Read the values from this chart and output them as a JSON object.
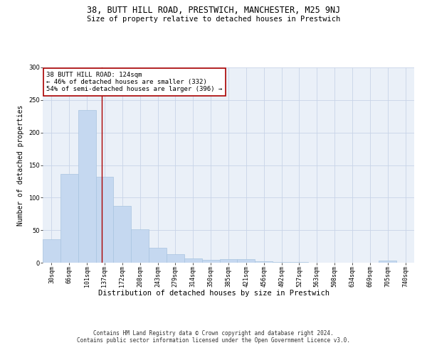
{
  "title1": "38, BUTT HILL ROAD, PRESTWICH, MANCHESTER, M25 9NJ",
  "title2": "Size of property relative to detached houses in Prestwich",
  "xlabel": "Distribution of detached houses by size in Prestwich",
  "ylabel": "Number of detached properties",
  "bar_color": "#c5d8f0",
  "bar_edge_color": "#a8c4e0",
  "grid_color": "#c8d4e8",
  "background_color": "#eaf0f8",
  "categories": [
    "30sqm",
    "66sqm",
    "101sqm",
    "137sqm",
    "172sqm",
    "208sqm",
    "243sqm",
    "279sqm",
    "314sqm",
    "350sqm",
    "385sqm",
    "421sqm",
    "456sqm",
    "492sqm",
    "527sqm",
    "563sqm",
    "598sqm",
    "634sqm",
    "669sqm",
    "705sqm",
    "740sqm"
  ],
  "values": [
    36,
    136,
    234,
    132,
    87,
    51,
    23,
    13,
    7,
    4,
    6,
    6,
    2,
    1,
    1,
    0,
    0,
    0,
    0,
    3,
    0
  ],
  "vline_x": 2.85,
  "vline_color": "#aa0000",
  "annotation_line1": "38 BUTT HILL ROAD: 124sqm",
  "annotation_line2": "← 46% of detached houses are smaller (332)",
  "annotation_line3": "54% of semi-detached houses are larger (396) →",
  "annotation_box_color": "white",
  "annotation_box_edge": "#aa0000",
  "ylim": [
    0,
    300
  ],
  "yticks": [
    0,
    50,
    100,
    150,
    200,
    250,
    300
  ],
  "footer_text": "Contains HM Land Registry data © Crown copyright and database right 2024.\nContains public sector information licensed under the Open Government Licence v3.0.",
  "title1_fontsize": 8.5,
  "title2_fontsize": 7.5,
  "xlabel_fontsize": 7.5,
  "ylabel_fontsize": 7,
  "tick_fontsize": 6,
  "annotation_fontsize": 6.5,
  "footer_fontsize": 5.5
}
